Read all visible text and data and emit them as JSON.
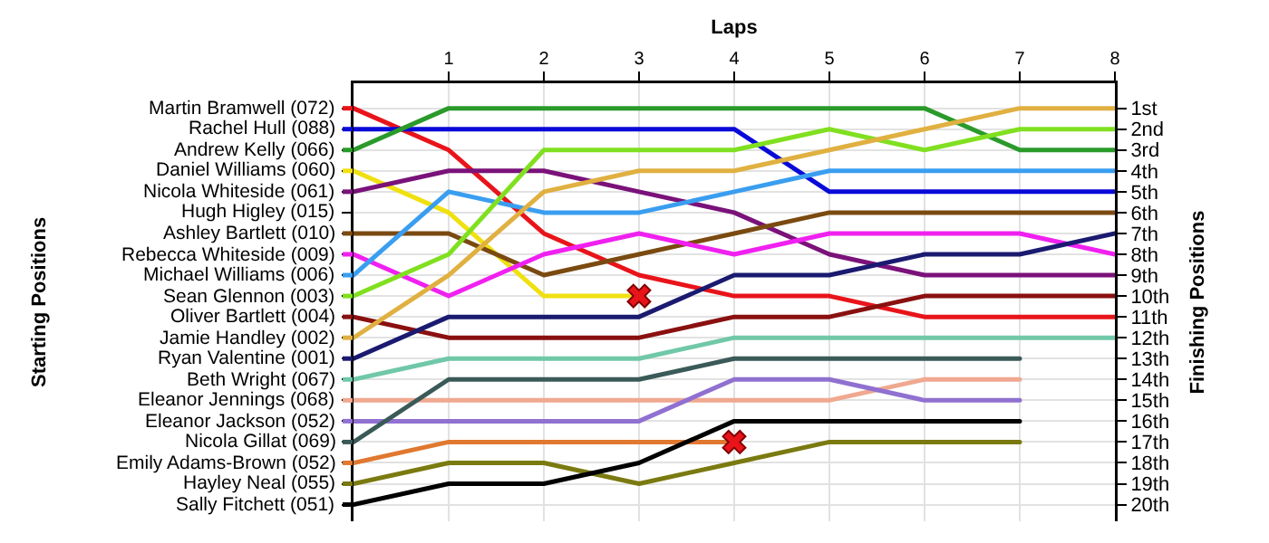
{
  "chart_data": {
    "type": "line",
    "xlabel": "Laps",
    "legend_title": "Starting Positions",
    "ylabel": "Finishing Positions",
    "xlim": [
      0,
      8
    ],
    "xticks": [
      1,
      2,
      3,
      4,
      5,
      6,
      7,
      8
    ],
    "ylim": [
      20.8,
      -0.2
    ],
    "yticks": [
      {
        "value": 1,
        "label": "1st"
      },
      {
        "value": 2,
        "label": "2nd"
      },
      {
        "value": 3,
        "label": "3rd"
      },
      {
        "value": 4,
        "label": "4th"
      },
      {
        "value": 5,
        "label": "5th"
      },
      {
        "value": 6,
        "label": "6th"
      },
      {
        "value": 7,
        "label": "7th"
      },
      {
        "value": 8,
        "label": "8th"
      },
      {
        "value": 9,
        "label": "9th"
      },
      {
        "value": 10,
        "label": "10th"
      },
      {
        "value": 11,
        "label": "11th"
      },
      {
        "value": 12,
        "label": "12th"
      },
      {
        "value": 13,
        "label": "13th"
      },
      {
        "value": 14,
        "label": "14th"
      },
      {
        "value": 15,
        "label": "15th"
      },
      {
        "value": 16,
        "label": "16th"
      },
      {
        "value": 17,
        "label": "17th"
      },
      {
        "value": 18,
        "label": "18th"
      },
      {
        "value": 19,
        "label": "19th"
      },
      {
        "value": 20,
        "label": "20th"
      }
    ],
    "grid": true,
    "legend": "left",
    "annotations": [
      "Hugh Higley (015)"
    ],
    "series": [
      {
        "name": "Martin Bramwell (072)",
        "color": "#e8141a",
        "x": [
          0,
          1,
          2,
          3,
          4,
          5,
          6,
          7,
          8
        ],
        "values": [
          1,
          3,
          7,
          9,
          10,
          10,
          11,
          11,
          11
        ]
      },
      {
        "name": "Rachel Hull (088)",
        "color": "#0a0ad8",
        "x": [
          0,
          1,
          2,
          3,
          4,
          5,
          6,
          7,
          8
        ],
        "values": [
          2,
          2,
          2,
          2,
          2,
          5,
          5,
          5,
          5
        ]
      },
      {
        "name": "Andrew Kelly (066)",
        "color": "#2a9a2a",
        "x": [
          0,
          1,
          2,
          3,
          4,
          5,
          6,
          7,
          8
        ],
        "values": [
          3,
          1,
          1,
          1,
          1,
          1,
          1,
          3,
          3
        ]
      },
      {
        "name": "Daniel Williams (060)",
        "color": "#f0e010",
        "x": [
          0,
          1,
          2,
          3
        ],
        "values": [
          4,
          6,
          10,
          10
        ]
      },
      {
        "name": "Nicola Whiteside (061)",
        "color": "#7a127a",
        "x": [
          0,
          1,
          2,
          3,
          4,
          5,
          6,
          7,
          8
        ],
        "values": [
          5,
          4,
          4,
          5,
          6,
          8,
          9,
          9,
          9
        ]
      },
      {
        "name": "Ashley Bartlett (010)",
        "color": "#7a4a10",
        "x": [
          0,
          1,
          2,
          3,
          4,
          5,
          6,
          7,
          8
        ],
        "values": [
          7,
          7,
          9,
          8,
          7,
          6,
          6,
          6,
          6
        ]
      },
      {
        "name": "Rebecca Whiteside (009)",
        "color": "#f020f0",
        "x": [
          0,
          1,
          2,
          3,
          4,
          5,
          6,
          7,
          8
        ],
        "values": [
          8,
          10,
          8,
          7,
          8,
          7,
          7,
          7,
          8
        ]
      },
      {
        "name": "Michael Williams (006)",
        "color": "#3a9ef0",
        "x": [
          0,
          1,
          2,
          3,
          4,
          5,
          6,
          7,
          8
        ],
        "values": [
          9,
          5,
          6,
          6,
          5,
          4,
          4,
          4,
          4
        ]
      },
      {
        "name": "Sean Glennon (003)",
        "color": "#80e020",
        "x": [
          0,
          1,
          2,
          3,
          4,
          5,
          6,
          7,
          8
        ],
        "values": [
          10,
          8,
          3,
          3,
          3,
          2,
          3,
          2,
          2
        ]
      },
      {
        "name": "Oliver Bartlett (004)",
        "color": "#8a1010",
        "x": [
          0,
          1,
          2,
          3,
          4,
          5,
          6,
          7,
          8
        ],
        "values": [
          11,
          12,
          12,
          12,
          11,
          11,
          10,
          10,
          10
        ]
      },
      {
        "name": "Jamie Handley (002)",
        "color": "#e0b040",
        "x": [
          0,
          1,
          2,
          3,
          4,
          5,
          6,
          7,
          8
        ],
        "values": [
          12,
          9,
          5,
          4,
          4,
          3,
          2,
          1,
          1
        ]
      },
      {
        "name": "Ryan Valentine (001)",
        "color": "#1a1a70",
        "x": [
          0,
          1,
          2,
          3,
          4,
          5,
          6,
          7,
          8
        ],
        "values": [
          13,
          11,
          11,
          11,
          9,
          9,
          8,
          8,
          7
        ]
      },
      {
        "name": "Beth Wright (067)",
        "color": "#70c8a8",
        "x": [
          0,
          1,
          2,
          3,
          4,
          5,
          6,
          7,
          8
        ],
        "values": [
          14,
          13,
          13,
          13,
          12,
          12,
          12,
          12,
          12
        ]
      },
      {
        "name": "Eleanor Jennings (068)",
        "color": "#f0a890",
        "x": [
          0,
          1,
          2,
          3,
          4,
          5,
          6,
          7
        ],
        "values": [
          15,
          15,
          15,
          15,
          15,
          15,
          14,
          14
        ]
      },
      {
        "name": "Eleanor Jackson (052)",
        "color": "#9070d0",
        "x": [
          0,
          1,
          2,
          3,
          4,
          5,
          6,
          7
        ],
        "values": [
          16,
          16,
          16,
          16,
          14,
          14,
          15,
          15
        ]
      },
      {
        "name": "Nicola Gillat (069)",
        "color": "#3a5a58",
        "x": [
          0,
          1,
          2,
          3,
          4,
          5,
          6,
          7
        ],
        "values": [
          17,
          14,
          14,
          14,
          13,
          13,
          13,
          13
        ]
      },
      {
        "name": "Emily Adams-Brown (052)",
        "color": "#e07830",
        "x": [
          0,
          1,
          2,
          3,
          4
        ],
        "values": [
          18,
          17,
          17,
          17,
          17
        ]
      },
      {
        "name": "Hayley Neal (055)",
        "color": "#7a7a10",
        "x": [
          0,
          1,
          2,
          3,
          4,
          5,
          6,
          7
        ],
        "values": [
          19,
          18,
          18,
          19,
          18,
          17,
          17,
          17
        ]
      },
      {
        "name": "Sally Fitchett (051)",
        "color": "#000000",
        "x": [
          0,
          1,
          2,
          3,
          4,
          5,
          6,
          7
        ],
        "values": [
          20,
          19,
          19,
          18,
          16,
          16,
          16,
          16
        ]
      },
      {
        "type": "scatter",
        "marker": "cross",
        "color": "#e8141a",
        "x": [
          3,
          4
        ],
        "values": [
          10,
          17
        ]
      }
    ]
  }
}
